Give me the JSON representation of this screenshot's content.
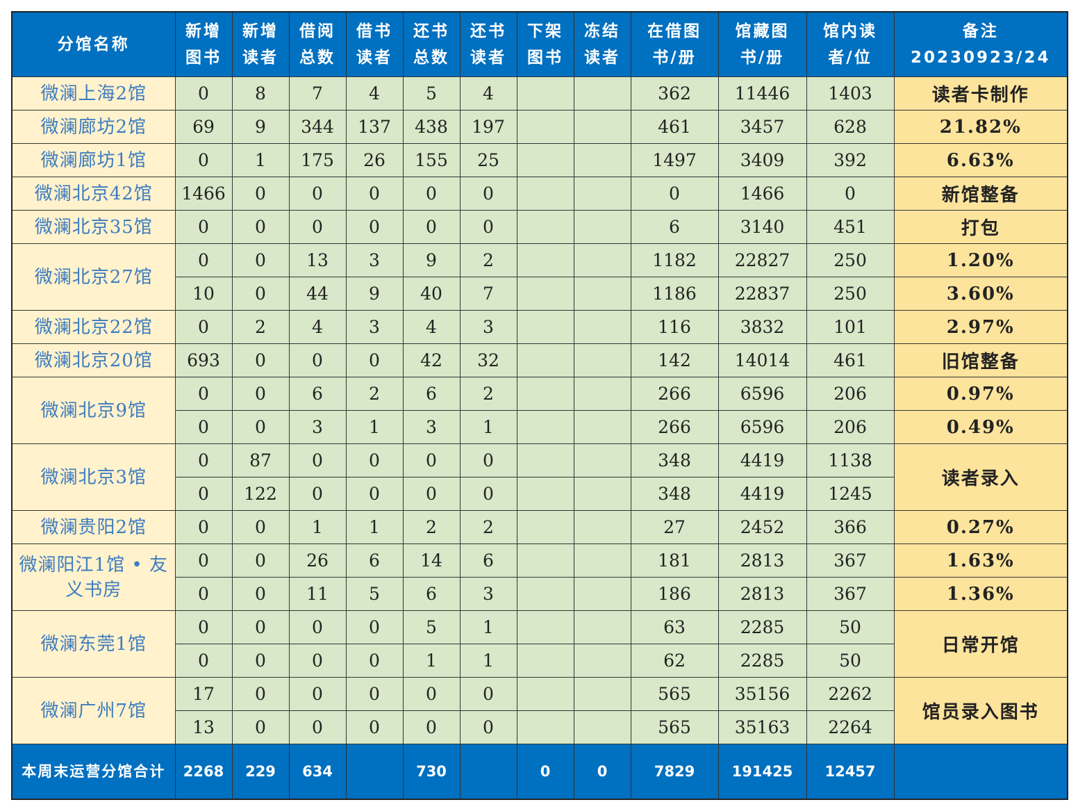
{
  "header": {
    "columns": [
      [
        "分馆名称"
      ],
      [
        "新增",
        "图书"
      ],
      [
        "新增",
        "读者"
      ],
      [
        "借阅",
        "总数"
      ],
      [
        "借书",
        "读者"
      ],
      [
        "还书",
        "总数"
      ],
      [
        "还书",
        "读者"
      ],
      [
        "下架",
        "图书"
      ],
      [
        "冻结",
        "读者"
      ],
      [
        "在借图",
        "书/册"
      ],
      [
        "馆藏图",
        "书/册"
      ],
      [
        "馆内读",
        "者/位"
      ],
      [
        "备注20230923/24"
      ]
    ]
  },
  "branches": [
    {
      "name": "微澜上海2馆",
      "rows": [
        [
          0,
          8,
          7,
          4,
          5,
          4,
          null,
          null,
          362,
          11446,
          1403
        ]
      ],
      "notes": [
        "读者卡制作"
      ]
    },
    {
      "name": "微澜廊坊2馆",
      "rows": [
        [
          69,
          9,
          344,
          137,
          438,
          197,
          null,
          null,
          461,
          3457,
          628
        ]
      ],
      "notes": [
        "21.82%"
      ]
    },
    {
      "name": "微澜廊坊1馆",
      "rows": [
        [
          0,
          1,
          175,
          26,
          155,
          25,
          null,
          null,
          1497,
          3409,
          392
        ]
      ],
      "notes": [
        "6.63%"
      ]
    },
    {
      "name": "微澜北京42馆",
      "rows": [
        [
          1466,
          0,
          0,
          0,
          0,
          0,
          null,
          null,
          0,
          1466,
          0
        ]
      ],
      "notes": [
        "新馆整备"
      ]
    },
    {
      "name": "微澜北京35馆",
      "rows": [
        [
          0,
          0,
          0,
          0,
          0,
          0,
          null,
          null,
          6,
          3140,
          451
        ]
      ],
      "notes": [
        "打包"
      ]
    },
    {
      "name": "微澜北京27馆",
      "rows": [
        [
          0,
          0,
          13,
          3,
          9,
          2,
          null,
          null,
          1182,
          22827,
          250
        ],
        [
          10,
          0,
          44,
          9,
          40,
          7,
          null,
          null,
          1186,
          22837,
          250
        ]
      ],
      "notes": [
        "1.20%",
        "3.60%"
      ]
    },
    {
      "name": "微澜北京22馆",
      "rows": [
        [
          0,
          2,
          4,
          3,
          4,
          3,
          null,
          null,
          116,
          3832,
          101
        ]
      ],
      "notes": [
        "2.97%"
      ]
    },
    {
      "name": "微澜北京20馆",
      "rows": [
        [
          693,
          0,
          0,
          0,
          42,
          32,
          null,
          null,
          142,
          14014,
          461
        ]
      ],
      "notes": [
        "旧馆整备"
      ]
    },
    {
      "name": "微澜北京9馆",
      "rows": [
        [
          0,
          0,
          6,
          2,
          6,
          2,
          null,
          null,
          266,
          6596,
          206
        ],
        [
          0,
          0,
          3,
          1,
          3,
          1,
          null,
          null,
          266,
          6596,
          206
        ]
      ],
      "notes": [
        "0.97%",
        "0.49%"
      ]
    },
    {
      "name": "微澜北京3馆",
      "rows": [
        [
          0,
          87,
          0,
          0,
          0,
          0,
          null,
          null,
          348,
          4419,
          1138
        ],
        [
          0,
          122,
          0,
          0,
          0,
          0,
          null,
          null,
          348,
          4419,
          1245
        ]
      ],
      "notes": [
        "读者录入"
      ]
    },
    {
      "name": "微澜贵阳2馆",
      "rows": [
        [
          0,
          0,
          1,
          1,
          2,
          2,
          null,
          null,
          27,
          2452,
          366
        ]
      ],
      "notes": [
        "0.27%"
      ]
    },
    {
      "name": "微澜阳江1馆 • 友义书房",
      "rows": [
        [
          0,
          0,
          26,
          6,
          14,
          6,
          null,
          null,
          181,
          2813,
          367
        ],
        [
          0,
          0,
          11,
          5,
          6,
          3,
          null,
          null,
          186,
          2813,
          367
        ]
      ],
      "notes": [
        "1.63%",
        "1.36%"
      ]
    },
    {
      "name": "微澜东莞1馆",
      "rows": [
        [
          0,
          0,
          0,
          0,
          5,
          1,
          null,
          null,
          63,
          2285,
          50
        ],
        [
          0,
          0,
          0,
          0,
          1,
          1,
          null,
          null,
          62,
          2285,
          50
        ]
      ],
      "notes": [
        "日常开馆"
      ]
    },
    {
      "name": "微澜广州7馆",
      "rows": [
        [
          17,
          0,
          0,
          0,
          0,
          0,
          null,
          null,
          565,
          35156,
          2262
        ],
        [
          13,
          0,
          0,
          0,
          0,
          0,
          null,
          null,
          565,
          35163,
          2264
        ]
      ],
      "notes": [
        "馆员录入图书"
      ]
    }
  ],
  "total": {
    "label": "本周末运营分馆合计",
    "values": [
      2268,
      229,
      634,
      null,
      730,
      null,
      0,
      0,
      7829,
      191425,
      12457
    ]
  }
}
